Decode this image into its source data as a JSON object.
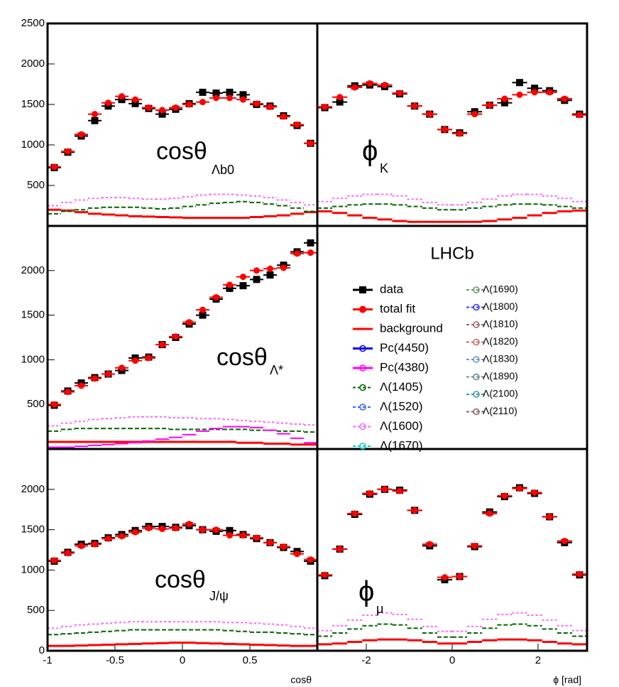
{
  "chart_data": [
    {
      "type": "histogram-fit",
      "label": "cosθ",
      "label_sub": "Λb0",
      "xlim": [
        -1,
        1
      ],
      "ylim": [
        0,
        2500
      ],
      "yticks": [
        500,
        1000,
        1500,
        2000,
        2500
      ],
      "series": [
        {
          "name": "data",
          "color": "#000000",
          "values": [
            720,
            910,
            1110,
            1300,
            1480,
            1560,
            1510,
            1450,
            1380,
            1440,
            1510,
            1650,
            1640,
            1650,
            1620,
            1500,
            1480,
            1360,
            1240,
            1020
          ]
        },
        {
          "name": "total fit",
          "color": "#ff0000",
          "values": [
            730,
            920,
            1130,
            1380,
            1520,
            1600,
            1560,
            1460,
            1430,
            1460,
            1500,
            1530,
            1580,
            1580,
            1560,
            1510,
            1470,
            1350,
            1250,
            1020
          ]
        },
        {
          "name": "background",
          "color": "#ff0000",
          "values": [
            200,
            190,
            170,
            150,
            140,
            130,
            120,
            115,
            110,
            105,
            100,
            100,
            100,
            100,
            100,
            110,
            120,
            130,
            150,
            170
          ]
        },
        {
          "name": "Λ(1600)",
          "color": "#ff66ff",
          "values": [
            250,
            290,
            320,
            340,
            350,
            350,
            340,
            330,
            330,
            340,
            360,
            380,
            390,
            390,
            380,
            370,
            350,
            320,
            290,
            260
          ]
        },
        {
          "name": "Λ(1405)",
          "color": "#006600",
          "values": [
            150,
            180,
            200,
            220,
            230,
            230,
            230,
            220,
            210,
            220,
            240,
            260,
            280,
            290,
            300,
            290,
            270,
            250,
            220,
            180
          ]
        }
      ]
    },
    {
      "type": "histogram-fit",
      "label": "ϕ",
      "label_sub": "K",
      "xlim": [
        -3.1416,
        3.1416
      ],
      "ylim": [
        0,
        2500
      ],
      "series": [
        {
          "name": "data",
          "color": "#000000",
          "values": [
            1460,
            1530,
            1730,
            1740,
            1720,
            1630,
            1480,
            1380,
            1190,
            1150,
            1410,
            1490,
            1520,
            1770,
            1700,
            1670,
            1550,
            1380
          ]
        },
        {
          "name": "total fit",
          "color": "#ff0000",
          "values": [
            1470,
            1590,
            1710,
            1760,
            1740,
            1640,
            1480,
            1380,
            1190,
            1140,
            1380,
            1490,
            1570,
            1620,
            1650,
            1650,
            1570,
            1370
          ]
        },
        {
          "name": "background",
          "color": "#ff0000",
          "values": [
            180,
            160,
            130,
            100,
            80,
            60,
            50,
            50,
            50,
            50,
            50,
            60,
            80,
            100,
            130,
            160,
            180,
            190
          ]
        },
        {
          "name": "Λ(1600)",
          "color": "#ff66ff",
          "values": [
            300,
            340,
            370,
            390,
            390,
            370,
            330,
            290,
            260,
            260,
            290,
            330,
            370,
            390,
            390,
            370,
            340,
            300
          ]
        },
        {
          "name": "Λ(1405)",
          "color": "#006600",
          "values": [
            220,
            240,
            260,
            270,
            270,
            260,
            240,
            220,
            200,
            200,
            220,
            240,
            260,
            270,
            270,
            260,
            240,
            220
          ]
        }
      ]
    },
    {
      "type": "histogram-fit",
      "label": "cosθ",
      "label_sub": "Λ*",
      "xlim": [
        -1,
        1
      ],
      "ylim": [
        0,
        2500
      ],
      "yticks": [
        500,
        1000,
        1500,
        2000
      ],
      "series": [
        {
          "name": "data",
          "color": "#000000",
          "values": [
            490,
            650,
            740,
            800,
            840,
            880,
            1020,
            1030,
            1170,
            1250,
            1400,
            1500,
            1680,
            1800,
            1830,
            1900,
            1950,
            2060,
            2210,
            2310
          ]
        },
        {
          "name": "total fit",
          "color": "#ff0000",
          "values": [
            500,
            640,
            710,
            790,
            840,
            910,
            990,
            1020,
            1170,
            1260,
            1420,
            1560,
            1700,
            1840,
            1930,
            2000,
            2020,
            2030,
            2190,
            2200
          ]
        },
        {
          "name": "background",
          "color": "#ff0000",
          "values": [
            80,
            80,
            80,
            80,
            80,
            80,
            80,
            80,
            80,
            80,
            80,
            80,
            80,
            80,
            70,
            70,
            60,
            60,
            50,
            50
          ]
        },
        {
          "name": "Λ(1600)",
          "color": "#ff66ff",
          "values": [
            260,
            290,
            310,
            330,
            340,
            350,
            360,
            360,
            360,
            350,
            350,
            340,
            340,
            330,
            320,
            310,
            300,
            290,
            280,
            270
          ]
        },
        {
          "name": "Λ(1405)",
          "color": "#006600",
          "values": [
            200,
            220,
            230,
            230,
            230,
            230,
            230,
            230,
            230,
            220,
            220,
            220,
            220,
            220,
            220,
            210,
            210,
            200,
            200,
            190
          ]
        },
        {
          "name": "Pc(4380)",
          "color": "#ff00ff",
          "values": [
            20,
            20,
            30,
            40,
            50,
            60,
            70,
            90,
            110,
            130,
            160,
            200,
            230,
            250,
            250,
            240,
            210,
            170,
            120,
            70
          ]
        }
      ]
    },
    {
      "type": "histogram-fit",
      "label": "cosθ",
      "label_sub": "J/ψ",
      "xlabel": "cosθ",
      "xlim": [
        -1,
        1
      ],
      "ylim": [
        0,
        2500
      ],
      "yticks": [
        0,
        500,
        1000,
        1500,
        2000
      ],
      "xticks": [
        -1,
        -0.5,
        0,
        0.5
      ],
      "series": [
        {
          "name": "data",
          "color": "#000000",
          "values": [
            1110,
            1220,
            1320,
            1330,
            1400,
            1440,
            1490,
            1540,
            1540,
            1530,
            1550,
            1500,
            1480,
            1490,
            1440,
            1390,
            1340,
            1280,
            1230,
            1110
          ]
        },
        {
          "name": "total fit",
          "color": "#ff0000",
          "values": [
            1120,
            1210,
            1300,
            1320,
            1390,
            1420,
            1470,
            1520,
            1510,
            1520,
            1570,
            1500,
            1500,
            1430,
            1430,
            1400,
            1340,
            1290,
            1200,
            1130
          ]
        },
        {
          "name": "background",
          "color": "#ff0000",
          "values": [
            60,
            60,
            65,
            70,
            75,
            80,
            85,
            90,
            95,
            100,
            100,
            95,
            90,
            85,
            80,
            75,
            70,
            65,
            60,
            60
          ]
        },
        {
          "name": "Λ(1600)",
          "color": "#ff66ff",
          "values": [
            280,
            300,
            320,
            330,
            340,
            350,
            360,
            360,
            360,
            360,
            360,
            360,
            360,
            350,
            350,
            340,
            330,
            320,
            300,
            280
          ]
        },
        {
          "name": "Λ(1405)",
          "color": "#006600",
          "values": [
            200,
            210,
            220,
            230,
            240,
            250,
            260,
            260,
            260,
            260,
            260,
            260,
            260,
            250,
            240,
            230,
            230,
            220,
            210,
            200
          ]
        }
      ]
    },
    {
      "type": "histogram-fit",
      "label": "ϕ",
      "label_sub": "μ",
      "xlabel": "ϕ [rad]",
      "xlim": [
        -3.1416,
        3.1416
      ],
      "ylim": [
        0,
        2500
      ],
      "xticks": [
        -2,
        0,
        2
      ],
      "series": [
        {
          "name": "data",
          "color": "#000000",
          "values": [
            930,
            1260,
            1690,
            1940,
            2000,
            1990,
            1740,
            1300,
            880,
            920,
            1290,
            1720,
            1910,
            2020,
            1950,
            1660,
            1340,
            940
          ]
        },
        {
          "name": "total fit",
          "color": "#ff0000",
          "values": [
            940,
            1260,
            1700,
            1950,
            2000,
            1980,
            1740,
            1320,
            910,
            920,
            1300,
            1700,
            1920,
            2010,
            1960,
            1660,
            1360,
            950
          ]
        },
        {
          "name": "background",
          "color": "#ff0000",
          "values": [
            80,
            90,
            110,
            130,
            140,
            140,
            130,
            110,
            90,
            90,
            110,
            130,
            140,
            140,
            130,
            110,
            90,
            80
          ]
        },
        {
          "name": "Λ(1600)",
          "color": "#ff66ff",
          "values": [
            250,
            310,
            380,
            440,
            470,
            450,
            390,
            300,
            240,
            240,
            300,
            390,
            450,
            470,
            440,
            380,
            310,
            250
          ]
        },
        {
          "name": "Λ(1405)",
          "color": "#006600",
          "values": [
            180,
            220,
            270,
            310,
            330,
            320,
            280,
            220,
            170,
            170,
            220,
            280,
            320,
            330,
            310,
            270,
            220,
            180
          ]
        }
      ]
    }
  ],
  "watermark": "LHCb",
  "legend": [
    {
      "name": "data",
      "color": "#000000"
    },
    {
      "name": "total fit",
      "color": "#ff0000"
    },
    {
      "name": "background",
      "color": "#ff0000"
    },
    {
      "name": "Pc(4450)",
      "color": "#0000ff"
    },
    {
      "name": "Pc(4380)",
      "color": "#ff00ff"
    },
    {
      "name": "Λ(1405)",
      "color": "#006600"
    },
    {
      "name": "Λ(1520)",
      "color": "#3366ff"
    },
    {
      "name": "Λ(1600)",
      "color": "#ff66ff"
    },
    {
      "name": "Λ(1670)",
      "color": "#00cccc"
    },
    {
      "name": "Λ(1690)",
      "color": "#669966"
    },
    {
      "name": "Λ(1800)",
      "color": "#3333ff"
    },
    {
      "name": "Λ(1810)",
      "color": "#996666"
    },
    {
      "name": "Λ(1820)",
      "color": "#cc6666"
    },
    {
      "name": "Λ(1830)",
      "color": "#6699cc"
    },
    {
      "name": "Λ(1890)",
      "color": "#668899"
    },
    {
      "name": "Λ(2100)",
      "color": "#339999"
    },
    {
      "name": "Λ(2110)",
      "color": "#886655"
    }
  ]
}
